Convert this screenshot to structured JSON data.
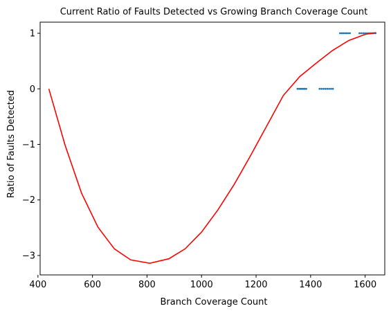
{
  "chart_data": {
    "type": "scatter",
    "title": "Current Ratio of Faults Detected vs Growing Branch Coverage Count",
    "xlabel": "Branch Coverage Count",
    "ylabel": "Ratio of Faults Detected",
    "xlim": [
      408,
      1672
    ],
    "ylim": [
      -3.35,
      1.2
    ],
    "xticks": [
      400,
      600,
      800,
      1000,
      1200,
      1400,
      1600
    ],
    "xtick_labels": [
      "400",
      "600",
      "800",
      "1000",
      "1200",
      "1400",
      "1600"
    ],
    "yticks": [
      1,
      0,
      -1,
      -2,
      -3
    ],
    "ytick_labels": [
      "1",
      "0",
      "−1",
      "−2",
      "−3"
    ],
    "grid": false,
    "series": [
      {
        "kind": "scatter",
        "color": "#1f77b4",
        "points": [
          [
            1352,
            0
          ],
          [
            1358,
            0
          ],
          [
            1363,
            0
          ],
          [
            1368,
            0
          ],
          [
            1373,
            0
          ],
          [
            1378,
            0
          ],
          [
            1384,
            0
          ],
          [
            1433,
            0
          ],
          [
            1440,
            0
          ],
          [
            1447,
            0
          ],
          [
            1454,
            0
          ],
          [
            1461,
            0
          ],
          [
            1468,
            0
          ],
          [
            1475,
            0
          ],
          [
            1482,
            0
          ],
          [
            1508,
            1
          ],
          [
            1514,
            1
          ],
          [
            1520,
            1
          ],
          [
            1526,
            1
          ],
          [
            1532,
            1
          ],
          [
            1538,
            1
          ],
          [
            1544,
            1
          ],
          [
            1579,
            1
          ],
          [
            1586,
            1
          ],
          [
            1593,
            1
          ],
          [
            1600,
            1
          ],
          [
            1607,
            1
          ],
          [
            1614,
            1
          ],
          [
            1620,
            1
          ],
          [
            1626,
            1
          ],
          [
            1632,
            1
          ],
          [
            1638,
            1
          ]
        ]
      },
      {
        "kind": "line",
        "color": "#ff0000",
        "points": [
          [
            440,
            0
          ],
          [
            500,
            -1.02
          ],
          [
            560,
            -1.88
          ],
          [
            620,
            -2.49
          ],
          [
            680,
            -2.88
          ],
          [
            740,
            -3.08
          ],
          [
            810,
            -3.14
          ],
          [
            880,
            -3.06
          ],
          [
            940,
            -2.88
          ],
          [
            1000,
            -2.58
          ],
          [
            1060,
            -2.18
          ],
          [
            1120,
            -1.72
          ],
          [
            1180,
            -1.2
          ],
          [
            1240,
            -0.66
          ],
          [
            1300,
            -0.12
          ],
          [
            1360,
            0.22
          ],
          [
            1420,
            0.46
          ],
          [
            1480,
            0.69
          ],
          [
            1540,
            0.87
          ],
          [
            1600,
            0.98
          ],
          [
            1640,
            1.01
          ]
        ]
      }
    ]
  }
}
